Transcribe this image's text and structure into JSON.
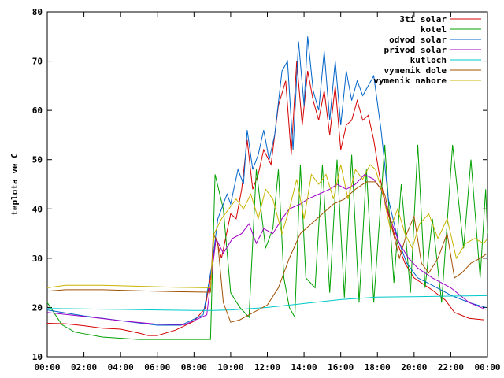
{
  "chart_data": {
    "type": "line",
    "title": "",
    "xlabel": "",
    "ylabel": "teplota ve C",
    "xlim": [
      0,
      24
    ],
    "ylim": [
      10,
      80
    ],
    "grid": false,
    "legend_position": "top-right",
    "x_tick_labels": [
      "00:00",
      "02:00",
      "04:00",
      "06:00",
      "08:00",
      "10:00",
      "12:00",
      "14:00",
      "16:00",
      "18:00",
      "20:00",
      "22:00",
      "00:00"
    ],
    "y_ticks": [
      10,
      20,
      30,
      40,
      50,
      60,
      70,
      80
    ],
    "series": [
      {
        "name": "3ti solar",
        "color": "#d40000",
        "points": [
          [
            0,
            16.8
          ],
          [
            1,
            16.7
          ],
          [
            2,
            16.3
          ],
          [
            3,
            15.8
          ],
          [
            4,
            15.6
          ],
          [
            5,
            14.8
          ],
          [
            5.5,
            14.3
          ],
          [
            6,
            14.3
          ],
          [
            7,
            15.4
          ],
          [
            8,
            17.2
          ],
          [
            8.6,
            19.8
          ],
          [
            9,
            28
          ],
          [
            9.2,
            34
          ],
          [
            9.5,
            30
          ],
          [
            10,
            39
          ],
          [
            10.3,
            38
          ],
          [
            10.6,
            44
          ],
          [
            10.9,
            54
          ],
          [
            11.2,
            44
          ],
          [
            11.5,
            47
          ],
          [
            11.8,
            52
          ],
          [
            12.2,
            49
          ],
          [
            12.6,
            61
          ],
          [
            13,
            66
          ],
          [
            13.3,
            51
          ],
          [
            13.6,
            70
          ],
          [
            13.9,
            57
          ],
          [
            14.2,
            68
          ],
          [
            14.5,
            62
          ],
          [
            14.8,
            58
          ],
          [
            15.1,
            64
          ],
          [
            15.4,
            55
          ],
          [
            15.7,
            65
          ],
          [
            16,
            52
          ],
          [
            16.3,
            57
          ],
          [
            16.6,
            58
          ],
          [
            16.9,
            62
          ],
          [
            17.2,
            58
          ],
          [
            17.5,
            59
          ],
          [
            17.8,
            54
          ],
          [
            18.1,
            47
          ],
          [
            18.5,
            40
          ],
          [
            19,
            34
          ],
          [
            19.5,
            29
          ],
          [
            20,
            26
          ],
          [
            21,
            23.5
          ],
          [
            21.7,
            21.5
          ],
          [
            22.2,
            19
          ],
          [
            23,
            17.8
          ],
          [
            23.8,
            17.5
          ]
        ]
      },
      {
        "name": "kotel",
        "color": "#00a000",
        "points": [
          [
            0,
            21
          ],
          [
            0.8,
            16.5
          ],
          [
            1.5,
            15
          ],
          [
            3,
            14
          ],
          [
            5,
            13.5
          ],
          [
            7,
            13.5
          ],
          [
            8.9,
            13.5
          ],
          [
            9.15,
            47
          ],
          [
            9.6,
            40
          ],
          [
            10,
            23
          ],
          [
            10.5,
            20
          ],
          [
            11,
            18
          ],
          [
            11.4,
            48
          ],
          [
            11.9,
            32
          ],
          [
            12.3,
            36
          ],
          [
            12.6,
            48
          ],
          [
            12.9,
            26
          ],
          [
            13.2,
            20
          ],
          [
            13.5,
            18
          ],
          [
            13.8,
            49
          ],
          [
            14.1,
            26
          ],
          [
            14.6,
            24
          ],
          [
            15,
            49
          ],
          [
            15.4,
            23
          ],
          [
            15.8,
            50
          ],
          [
            16.2,
            22
          ],
          [
            16.6,
            51
          ],
          [
            17,
            21
          ],
          [
            17.4,
            48
          ],
          [
            17.8,
            21
          ],
          [
            18.4,
            53
          ],
          [
            18.9,
            25
          ],
          [
            19.3,
            45
          ],
          [
            19.8,
            23
          ],
          [
            20.2,
            53
          ],
          [
            20.6,
            24
          ],
          [
            21,
            38
          ],
          [
            21.5,
            21
          ],
          [
            22.1,
            53
          ],
          [
            22.7,
            32
          ],
          [
            23.1,
            50
          ],
          [
            23.6,
            26
          ],
          [
            23.9,
            44
          ],
          [
            24,
            35
          ]
        ]
      },
      {
        "name": "odvod solar",
        "color": "#0064c8",
        "points": [
          [
            0,
            19.5
          ],
          [
            2,
            18.3
          ],
          [
            4,
            17.3
          ],
          [
            6,
            16.4
          ],
          [
            7.3,
            16.4
          ],
          [
            8.5,
            18.5
          ],
          [
            9,
            29
          ],
          [
            9.3,
            38
          ],
          [
            9.8,
            43
          ],
          [
            10,
            41
          ],
          [
            10.4,
            48
          ],
          [
            10.7,
            45
          ],
          [
            10.9,
            56
          ],
          [
            11.2,
            48
          ],
          [
            11.5,
            51
          ],
          [
            11.8,
            56
          ],
          [
            12.1,
            50
          ],
          [
            12.4,
            55
          ],
          [
            12.8,
            68
          ],
          [
            13.1,
            70
          ],
          [
            13.4,
            52
          ],
          [
            13.7,
            74
          ],
          [
            14,
            61
          ],
          [
            14.2,
            75
          ],
          [
            14.5,
            64
          ],
          [
            14.8,
            60
          ],
          [
            15.1,
            72
          ],
          [
            15.4,
            58
          ],
          [
            15.7,
            70
          ],
          [
            16,
            57
          ],
          [
            16.3,
            68
          ],
          [
            16.6,
            62
          ],
          [
            16.9,
            66
          ],
          [
            17.2,
            63
          ],
          [
            17.5,
            65
          ],
          [
            17.8,
            67
          ],
          [
            18.2,
            56
          ],
          [
            18.6,
            42
          ],
          [
            19.1,
            34
          ],
          [
            19.6,
            29
          ],
          [
            20.2,
            26
          ],
          [
            21,
            24.5
          ],
          [
            22,
            22.5
          ],
          [
            23,
            21
          ],
          [
            23.9,
            20
          ]
        ]
      },
      {
        "name": "privod solar",
        "color": "#a000c8",
        "points": [
          [
            0,
            19
          ],
          [
            2,
            18.2
          ],
          [
            4,
            17.3
          ],
          [
            6,
            16.6
          ],
          [
            7.5,
            16.5
          ],
          [
            8.7,
            18.5
          ],
          [
            9.2,
            34
          ],
          [
            9.6,
            31
          ],
          [
            10.1,
            34
          ],
          [
            10.6,
            35
          ],
          [
            11,
            37
          ],
          [
            11.4,
            33
          ],
          [
            11.8,
            36
          ],
          [
            12.3,
            35
          ],
          [
            12.8,
            38
          ],
          [
            13.2,
            40
          ],
          [
            13.8,
            41
          ],
          [
            14.2,
            42
          ],
          [
            14.8,
            43
          ],
          [
            15.4,
            44
          ],
          [
            15.8,
            45
          ],
          [
            16.3,
            44
          ],
          [
            16.8,
            45
          ],
          [
            17.3,
            47
          ],
          [
            17.8,
            46
          ],
          [
            18.2,
            44
          ],
          [
            18.7,
            38
          ],
          [
            19.2,
            33
          ],
          [
            19.7,
            30
          ],
          [
            20.2,
            28
          ],
          [
            21,
            26
          ],
          [
            22,
            24
          ],
          [
            23,
            21
          ],
          [
            23.9,
            19.6
          ]
        ]
      },
      {
        "name": "kutloch",
        "color": "#00c8c8",
        "points": [
          [
            0,
            19.8
          ],
          [
            2,
            19.7
          ],
          [
            4,
            19.6
          ],
          [
            6,
            19.5
          ],
          [
            8,
            19.4
          ],
          [
            9,
            19.4
          ],
          [
            10,
            19.5
          ],
          [
            12,
            20
          ],
          [
            14,
            20.8
          ],
          [
            16,
            21.6
          ],
          [
            18,
            22.1
          ],
          [
            20,
            22.2
          ],
          [
            22,
            22.3
          ],
          [
            24,
            22.4
          ]
        ]
      },
      {
        "name": "vymenik dole",
        "color": "#a05000",
        "points": [
          [
            0,
            23.3
          ],
          [
            1,
            23.6
          ],
          [
            3,
            23.6
          ],
          [
            5,
            23.4
          ],
          [
            7,
            23.2
          ],
          [
            8.9,
            23.1
          ],
          [
            9.05,
            35
          ],
          [
            9.3,
            33
          ],
          [
            9.6,
            21
          ],
          [
            10,
            17
          ],
          [
            10.5,
            17.5
          ],
          [
            11,
            18.5
          ],
          [
            12,
            20.5
          ],
          [
            12.6,
            24
          ],
          [
            13.2,
            30
          ],
          [
            13.8,
            35
          ],
          [
            14.4,
            37
          ],
          [
            15,
            39
          ],
          [
            15.6,
            41
          ],
          [
            16.2,
            42
          ],
          [
            16.8,
            44
          ],
          [
            17.4,
            45.5
          ],
          [
            17.9,
            45.5
          ],
          [
            18.4,
            43
          ],
          [
            18.8,
            36
          ],
          [
            19.2,
            30
          ],
          [
            19.6,
            35
          ],
          [
            20,
            38.5
          ],
          [
            20.4,
            29
          ],
          [
            20.8,
            27
          ],
          [
            21.3,
            30
          ],
          [
            21.8,
            35
          ],
          [
            22.2,
            26
          ],
          [
            22.6,
            27
          ],
          [
            23.1,
            29
          ],
          [
            23.6,
            30
          ],
          [
            24,
            31
          ]
        ]
      },
      {
        "name": "vymenik nahore",
        "color": "#c8b400",
        "points": [
          [
            0,
            24
          ],
          [
            1,
            24.5
          ],
          [
            3,
            24.5
          ],
          [
            5,
            24.3
          ],
          [
            7,
            24.1
          ],
          [
            8.9,
            24
          ],
          [
            9.1,
            35
          ],
          [
            9.5,
            38
          ],
          [
            9.9,
            40
          ],
          [
            10.3,
            42
          ],
          [
            10.7,
            40
          ],
          [
            11.1,
            43
          ],
          [
            11.5,
            38
          ],
          [
            11.9,
            44
          ],
          [
            12.3,
            42
          ],
          [
            12.8,
            35
          ],
          [
            13.2,
            40
          ],
          [
            13.6,
            46
          ],
          [
            14,
            38
          ],
          [
            14.4,
            47
          ],
          [
            14.8,
            45
          ],
          [
            15.2,
            47
          ],
          [
            15.6,
            42
          ],
          [
            16,
            49
          ],
          [
            16.4,
            42
          ],
          [
            16.8,
            48
          ],
          [
            17.2,
            46
          ],
          [
            17.6,
            49
          ],
          [
            17.9,
            48
          ],
          [
            18.3,
            43
          ],
          [
            18.7,
            36
          ],
          [
            19.1,
            40
          ],
          [
            19.5,
            35
          ],
          [
            19.9,
            32
          ],
          [
            20.3,
            37
          ],
          [
            20.8,
            39
          ],
          [
            21.3,
            34
          ],
          [
            21.8,
            38
          ],
          [
            22.3,
            30
          ],
          [
            22.8,
            33
          ],
          [
            23.3,
            34
          ],
          [
            23.8,
            33
          ],
          [
            24,
            34
          ]
        ]
      }
    ]
  }
}
